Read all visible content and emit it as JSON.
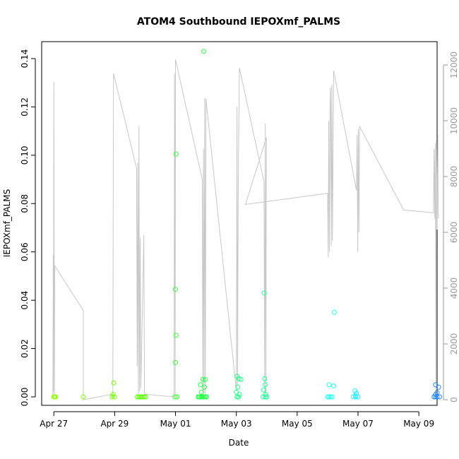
{
  "chart_data": {
    "type": "scatter",
    "title": "ATOM4 Southbound IEPOXmf_PALMS",
    "xlabel": "Date",
    "ylabel": "IEPOXmf_PALMS",
    "ylim": [
      -0.0035,
      0.147
    ],
    "y_ticks": [
      0.0,
      0.02,
      0.04,
      0.06,
      0.08,
      0.1,
      0.12,
      0.14
    ],
    "y_tick_labels": [
      "0.00",
      "0.02",
      "0.04",
      "0.06",
      "0.08",
      "0.10",
      "0.12",
      "0.14"
    ],
    "xlim_days": [
      26.6,
      39.6
    ],
    "x_ticks": [
      27,
      29,
      31,
      33,
      35,
      37,
      39
    ],
    "x_tick_labels": [
      "Apr 27",
      "Apr 29",
      "May 01",
      "May 03",
      "May 05",
      "May 07",
      "May 09"
    ],
    "y2_range": [
      0,
      12000
    ],
    "y2_ticks": [
      0,
      2000,
      4000,
      6000,
      8000,
      10000,
      12000
    ],
    "y2_tick_labels": [
      "0",
      "2000",
      "4000",
      "6000",
      "8000",
      "10000",
      "12000"
    ],
    "grid": false,
    "points": [
      [
        27.0,
        0.0,
        "#90ff00"
      ],
      [
        27.03,
        0.0,
        "#90ff00"
      ],
      [
        27.06,
        0.0,
        "#90ff00"
      ],
      [
        27.02,
        0.0,
        "#90ff00"
      ],
      [
        27.97,
        0.0,
        "#80ff00"
      ],
      [
        28.97,
        0.0058,
        "#70ff00"
      ],
      [
        28.95,
        0.001,
        "#70ff00"
      ],
      [
        28.92,
        0.0,
        "#70ff00"
      ],
      [
        28.99,
        0.0,
        "#70ff00"
      ],
      [
        29.75,
        0.0,
        "#5cff00"
      ],
      [
        29.8,
        0.0,
        "#5cff00"
      ],
      [
        29.84,
        0.0,
        "#5cff00"
      ],
      [
        29.88,
        0.0,
        "#5cff00"
      ],
      [
        29.92,
        0.0,
        "#5cff00"
      ],
      [
        29.97,
        0.0,
        "#5cff00"
      ],
      [
        30.02,
        0.0,
        "#5cff00"
      ],
      [
        31.02,
        0.1005,
        "#33ff33"
      ],
      [
        31.0,
        0.0445,
        "#33ff33"
      ],
      [
        31.02,
        0.0255,
        "#33ff33"
      ],
      [
        31.0,
        0.0142,
        "#33ff33"
      ],
      [
        30.98,
        0.0,
        "#33ff33"
      ],
      [
        31.05,
        0.0,
        "#33ff33"
      ],
      [
        31.93,
        0.143,
        "#22ff44"
      ],
      [
        31.82,
        0.005,
        "#22ff44"
      ],
      [
        31.9,
        0.0072,
        "#22ff44"
      ],
      [
        31.98,
        0.0072,
        "#22ff44"
      ],
      [
        31.85,
        0.002,
        "#22ff44"
      ],
      [
        31.95,
        0.004,
        "#22ff44"
      ],
      [
        31.75,
        0.0,
        "#22ff44"
      ],
      [
        31.78,
        0.0,
        "#22ff44"
      ],
      [
        31.82,
        0.0,
        "#22ff44"
      ],
      [
        31.86,
        0.0,
        "#22ff44"
      ],
      [
        31.9,
        0.0,
        "#22ff44"
      ],
      [
        31.94,
        0.0,
        "#22ff44"
      ],
      [
        31.98,
        0.0,
        "#22ff44"
      ],
      [
        32.02,
        0.0,
        "#22ff44"
      ],
      [
        33.02,
        0.0085,
        "#22ff88"
      ],
      [
        33.08,
        0.0075,
        "#22ff88"
      ],
      [
        33.15,
        0.0072,
        "#22ff88"
      ],
      [
        33.05,
        0.004,
        "#22ff88"
      ],
      [
        33.0,
        0.002,
        "#22ff88"
      ],
      [
        33.1,
        0.001,
        "#22ff88"
      ],
      [
        33.02,
        0.0,
        "#22ff88"
      ],
      [
        33.07,
        0.0,
        "#22ff88"
      ],
      [
        33.92,
        0.043,
        "#22ff99"
      ],
      [
        33.93,
        0.0075,
        "#22ff99"
      ],
      [
        33.95,
        0.005,
        "#22ff99"
      ],
      [
        33.9,
        0.0028,
        "#22ff99"
      ],
      [
        33.97,
        0.001,
        "#22ff99"
      ],
      [
        33.88,
        0.0,
        "#22ff99"
      ],
      [
        33.95,
        0.0,
        "#22ff99"
      ],
      [
        34.0,
        0.0,
        "#22ff99"
      ],
      [
        36.22,
        0.035,
        "#22ffee"
      ],
      [
        36.05,
        0.005,
        "#22ffee"
      ],
      [
        36.2,
        0.0045,
        "#22ffee"
      ],
      [
        36.0,
        0.0,
        "#22ffee"
      ],
      [
        36.05,
        0.0,
        "#22ffee"
      ],
      [
        36.1,
        0.0,
        "#22ffee"
      ],
      [
        36.15,
        0.0,
        "#22ffee"
      ],
      [
        36.9,
        0.0025,
        "#22eeff"
      ],
      [
        36.95,
        0.0015,
        "#22eeff"
      ],
      [
        36.92,
        0.0005,
        "#22eeff"
      ],
      [
        36.85,
        0.0,
        "#22eeff"
      ],
      [
        36.92,
        0.0,
        "#22eeff"
      ],
      [
        37.0,
        0.0,
        "#22eeff"
      ],
      [
        39.55,
        0.005,
        "#2288ff"
      ],
      [
        39.65,
        0.004,
        "#2288ff"
      ],
      [
        39.6,
        0.0018,
        "#2288ff"
      ],
      [
        39.55,
        0.001,
        "#2288ff"
      ],
      [
        39.5,
        0.0,
        "#2288ff"
      ],
      [
        39.55,
        0.0,
        "#2288ff"
      ],
      [
        39.6,
        0.0,
        "#2288ff"
      ],
      [
        39.68,
        0.0,
        "#2288ff"
      ]
    ],
    "altitude_line": {
      "color": "#c8c8c8",
      "points": [
        [
          26.97,
          100
        ],
        [
          26.98,
          5200
        ],
        [
          26.99,
          300
        ],
        [
          27.0,
          11400
        ],
        [
          27.02,
          200
        ],
        [
          27.03,
          4800
        ],
        [
          27.97,
          3200
        ],
        [
          27.97,
          0
        ],
        [
          28.94,
          200
        ],
        [
          28.96,
          11700
        ],
        [
          29.72,
          8300
        ],
        [
          29.74,
          1200
        ],
        [
          29.76,
          8500
        ],
        [
          29.78,
          200
        ],
        [
          29.8,
          9800
        ],
        [
          29.82,
          300
        ],
        [
          29.84,
          5800
        ],
        [
          29.86,
          400
        ],
        [
          29.96,
          5900
        ],
        [
          29.98,
          200
        ],
        [
          30.95,
          100
        ],
        [
          30.97,
          11700
        ],
        [
          30.99,
          200
        ],
        [
          31.0,
          12200
        ],
        [
          31.88,
          7900
        ],
        [
          31.9,
          200
        ],
        [
          31.92,
          9000
        ],
        [
          31.94,
          300
        ],
        [
          31.96,
          10800
        ],
        [
          31.98,
          200
        ],
        [
          32.0,
          9000
        ],
        [
          32.0,
          10800
        ],
        [
          33.0,
          300
        ],
        [
          33.02,
          10500
        ],
        [
          33.04,
          500
        ],
        [
          33.06,
          7000
        ],
        [
          33.08,
          9600
        ],
        [
          33.1,
          11900
        ],
        [
          33.91,
          7800
        ],
        [
          33.93,
          300
        ],
        [
          33.95,
          9900
        ],
        [
          33.97,
          200
        ],
        [
          33.99,
          9400
        ],
        [
          33.3,
          7000
        ],
        [
          36.0,
          7400
        ],
        [
          36.02,
          5100
        ],
        [
          36.04,
          10000
        ],
        [
          36.06,
          5300
        ],
        [
          36.08,
          10600
        ],
        [
          36.1,
          11200
        ],
        [
          36.12,
          5500
        ],
        [
          36.14,
          11300
        ],
        [
          36.16,
          5700
        ],
        [
          36.2,
          11800
        ],
        [
          36.95,
          7500
        ],
        [
          36.97,
          9500
        ],
        [
          36.99,
          5300
        ],
        [
          37.01,
          9700
        ],
        [
          37.03,
          6000
        ],
        [
          37.05,
          9800
        ],
        [
          38.5,
          6800
        ],
        [
          39.48,
          6700
        ],
        [
          39.5,
          9000
        ],
        [
          39.52,
          6500
        ],
        [
          39.54,
          9200
        ],
        [
          39.56,
          200
        ],
        [
          39.58,
          9300
        ],
        [
          39.6,
          6100
        ],
        [
          39.62,
          9500
        ],
        [
          39.64,
          6500
        ]
      ]
    }
  }
}
